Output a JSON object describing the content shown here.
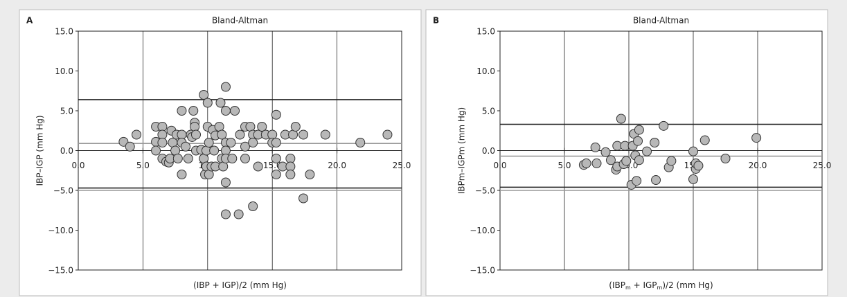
{
  "chart_data": [
    {
      "type": "scatter",
      "label": "A",
      "title": "Bland-Altman",
      "ylabel": "IBP–IGP (mm Hg)",
      "xlabel": [
        {
          "text": "(IBP + IGP)/2 (mm Hg)"
        }
      ],
      "xlim": [
        0,
        25
      ],
      "ylim": [
        -15,
        15
      ],
      "xticks": [
        {
          "value": 0,
          "label": "0.0"
        },
        {
          "value": 5,
          "label": "5.0"
        },
        {
          "value": 10,
          "label": "10.0"
        },
        {
          "value": 15,
          "label": "15.0"
        },
        {
          "value": 20,
          "label": "20.0"
        },
        {
          "value": 25,
          "label": "25.0"
        }
      ],
      "yticks": [
        {
          "value": -15,
          "label": "−15.0"
        },
        {
          "value": -10,
          "label": "−10.0"
        },
        {
          "value": -5,
          "label": "−5.0"
        },
        {
          "value": 0,
          "label": "0.0"
        },
        {
          "value": 5,
          "label": "5.0"
        },
        {
          "value": 10,
          "label": "10.0"
        },
        {
          "value": 15,
          "label": "15.0"
        }
      ],
      "grid": "x",
      "color": "#b8b8b8",
      "hlines": [
        {
          "value": 6.4,
          "color": "#222"
        },
        {
          "value": 0.9,
          "color": "#999"
        },
        {
          "value": -4.7,
          "color": "#222"
        },
        {
          "value": -5.0,
          "color": "#999"
        }
      ],
      "x": [
        3.5,
        4.0,
        4.5,
        6.0,
        6.0,
        6.0,
        6.5,
        6.5,
        6.5,
        6.5,
        6.8,
        7.0,
        7.1,
        7.2,
        7.3,
        7.5,
        7.6,
        7.7,
        8.0,
        8.0,
        8.0,
        8.0,
        8.3,
        8.5,
        8.7,
        8.8,
        8.9,
        9.0,
        9.0,
        9.1,
        9.1,
        9.5,
        9.7,
        9.7,
        9.8,
        9.9,
        9.9,
        10.0,
        10.0,
        10.1,
        10.1,
        10.3,
        10.4,
        10.5,
        10.6,
        10.6,
        10.9,
        11.0,
        11.1,
        11.1,
        11.2,
        11.4,
        11.4,
        11.4,
        11.4,
        11.4,
        11.4,
        11.4,
        11.8,
        11.9,
        12.1,
        12.4,
        12.5,
        12.9,
        12.9,
        12.9,
        13.3,
        13.5,
        13.5,
        13.5,
        13.9,
        13.9,
        14.2,
        14.5,
        15.0,
        15.0,
        15.3,
        15.3,
        15.3,
        15.3,
        15.8,
        16.0,
        16.4,
        16.4,
        16.4,
        16.6,
        16.8,
        17.4,
        17.4,
        17.9,
        19.1,
        21.8,
        23.9
      ],
      "values": [
        1.1,
        0.5,
        2.0,
        3.0,
        1.1,
        0,
        3.0,
        2.0,
        1.0,
        -1.0,
        -1.4,
        -1.5,
        -1.0,
        2.5,
        1.0,
        0,
        2.0,
        -1.0,
        5.0,
        2.0,
        1.0,
        -3.0,
        0.5,
        -1.0,
        2.0,
        1.7,
        5.0,
        3.5,
        3.0,
        2.0,
        0,
        0.1,
        7.0,
        -1.0,
        -3.0,
        0,
        -2.0,
        3.0,
        6.0,
        1.0,
        -3.0,
        -2.0,
        2.6,
        0,
        1.9,
        -2.0,
        3.0,
        6.0,
        2.0,
        -1.0,
        -2.0,
        8.0,
        5.0,
        1.0,
        0,
        -1.0,
        -4.0,
        -8.0,
        1.0,
        -1.0,
        5.0,
        -8.0,
        2.0,
        3.0,
        0.5,
        -1.0,
        3.0,
        -7.0,
        2.0,
        1.0,
        -2.0,
        2.0,
        3.0,
        2.0,
        2.0,
        1.0,
        4.5,
        1.0,
        -1.0,
        -3.0,
        -2.0,
        2.0,
        -1.0,
        -2.0,
        -3.0,
        2.0,
        3.0,
        2.0,
        -6.0,
        -3.0,
        2.0,
        1.0,
        2.0
      ]
    },
    {
      "type": "scatter",
      "label": "B",
      "title": "Bland-Altman",
      "ylabel": "IBPm–IGPm (mm Hg)",
      "xlabel": [
        {
          "text": "(IBP"
        },
        {
          "text": "m",
          "sub": true
        },
        {
          "text": " + IGP"
        },
        {
          "text": "m",
          "sub": true
        },
        {
          "text": ")/2 (mm Hg)"
        }
      ],
      "xlim": [
        0,
        25
      ],
      "ylim": [
        -15,
        15
      ],
      "xticks": [
        {
          "value": 0,
          "label": "0.0"
        },
        {
          "value": 5,
          "label": "5.0"
        },
        {
          "value": 10,
          "label": "10.0"
        },
        {
          "value": 15,
          "label": "15.0"
        },
        {
          "value": 20,
          "label": "20.0"
        },
        {
          "value": 25,
          "label": "25.0"
        }
      ],
      "yticks": [
        {
          "value": -15,
          "label": "−15.0"
        },
        {
          "value": -10,
          "label": "−10.0"
        },
        {
          "value": -5,
          "label": "−5.0"
        },
        {
          "value": 0,
          "label": "0.0"
        },
        {
          "value": 5,
          "label": "5.0"
        },
        {
          "value": 10,
          "label": "10.0"
        },
        {
          "value": 15,
          "label": "15.0"
        }
      ],
      "grid": "x",
      "color": "#b8b8b8",
      "hlines": [
        {
          "value": 3.3,
          "color": "#222"
        },
        {
          "value": -0.7,
          "color": "#999"
        },
        {
          "value": -4.6,
          "color": "#222"
        },
        {
          "value": -5.0,
          "color": "#999"
        }
      ],
      "x": [
        6.5,
        6.7,
        7.4,
        7.5,
        8.2,
        8.6,
        9.0,
        9.1,
        9.1,
        9.4,
        9.6,
        9.7,
        9.8,
        10.2,
        10.3,
        10.4,
        10.5,
        10.6,
        10.7,
        10.8,
        10.8,
        11.4,
        12.0,
        12.1,
        12.7,
        13.1,
        13.3,
        15.0,
        15.2,
        15.2,
        15.4,
        15.0,
        15.9,
        17.5,
        19.9
      ],
      "values": [
        -1.8,
        -1.6,
        0.4,
        -1.6,
        -0.2,
        -1.2,
        -2.4,
        -2.0,
        0.6,
        4.0,
        -1.7,
        0.6,
        -1.3,
        -4.3,
        0.6,
        2.1,
        -0.6,
        -3.8,
        1.2,
        -1.2,
        2.6,
        -0.1,
        1.0,
        -3.7,
        3.1,
        -2.1,
        -1.3,
        -0.1,
        -2.3,
        -1.6,
        -1.9,
        -3.6,
        1.3,
        -1.0,
        1.6
      ]
    }
  ]
}
